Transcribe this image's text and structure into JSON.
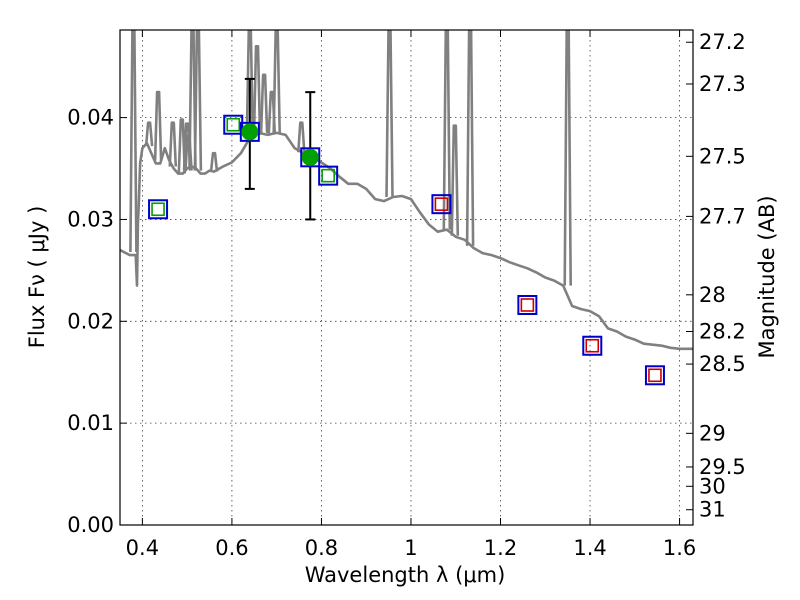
{
  "chart_data": {
    "type": "scatter",
    "title": "",
    "xlabel": "Wavelength  λ (μm)",
    "ylabel": "Flux  Fν  ( μJy )",
    "ylabel_right": "Magnitude (AB)",
    "xlim": [
      0.35,
      1.63
    ],
    "ylim": [
      0.0,
      0.0486
    ],
    "grid": true,
    "x_ticks": [
      {
        "value": 0.4,
        "label": "0.4"
      },
      {
        "value": 0.6,
        "label": "0.6"
      },
      {
        "value": 0.8,
        "label": "0.8"
      },
      {
        "value": 1.0,
        "label": "1"
      },
      {
        "value": 1.2,
        "label": "1.2"
      },
      {
        "value": 1.4,
        "label": "1.4"
      },
      {
        "value": 1.6,
        "label": "1.6"
      }
    ],
    "y_ticks": [
      {
        "value": 0.0,
        "label": "0.00"
      },
      {
        "value": 0.01,
        "label": "0.01"
      },
      {
        "value": 0.02,
        "label": "0.02"
      },
      {
        "value": 0.03,
        "label": "0.03"
      },
      {
        "value": 0.04,
        "label": "0.04"
      }
    ],
    "right_ticks": [
      {
        "flux": 0.0474,
        "label": "27.2"
      },
      {
        "flux": 0.0433,
        "label": "27.3"
      },
      {
        "flux": 0.0362,
        "label": "27.5"
      },
      {
        "flux": 0.0303,
        "label": "27.7"
      },
      {
        "flux": 0.0226,
        "label": "28"
      },
      {
        "flux": 0.019,
        "label": "28.2"
      },
      {
        "flux": 0.0158,
        "label": "28.5"
      },
      {
        "flux": 0.009,
        "label": "29"
      },
      {
        "flux": 0.0057,
        "label": "29.5"
      },
      {
        "flux": 0.0038,
        "label": "30"
      },
      {
        "flux": 0.0015,
        "label": "31"
      }
    ],
    "series": [
      {
        "kind": "line",
        "color": "#808080",
        "x": [
          0.35,
          0.372,
          0.385,
          0.388,
          0.39,
          0.392,
          0.395,
          0.4,
          0.41,
          0.42,
          0.43,
          0.44,
          0.45,
          0.46,
          0.47,
          0.48,
          0.49,
          0.5,
          0.51,
          0.52,
          0.53,
          0.54,
          0.55,
          0.56,
          0.58,
          0.6,
          0.62,
          0.64,
          0.66,
          0.68,
          0.7,
          0.72,
          0.74,
          0.76,
          0.78,
          0.8,
          0.82,
          0.84,
          0.86,
          0.88,
          0.9,
          0.92,
          0.94,
          0.96,
          0.98,
          1.0,
          1.02,
          1.04,
          1.06,
          1.08,
          1.1,
          1.12,
          1.14,
          1.16,
          1.18,
          1.2,
          1.22,
          1.24,
          1.26,
          1.28,
          1.3,
          1.32,
          1.34,
          1.36,
          1.38,
          1.4,
          1.42,
          1.44,
          1.46,
          1.48,
          1.5,
          1.52,
          1.54,
          1.56,
          1.58,
          1.6,
          1.63
        ],
        "values": [
          0.027,
          0.0265,
          0.0265,
          0.0235,
          0.0295,
          0.0315,
          0.0355,
          0.037,
          0.0375,
          0.0365,
          0.0355,
          0.0355,
          0.037,
          0.0358,
          0.035,
          0.0345,
          0.0345,
          0.035,
          0.0352,
          0.035,
          0.0345,
          0.0345,
          0.0348,
          0.0347,
          0.0352,
          0.0356,
          0.0365,
          0.038,
          0.0385,
          0.0383,
          0.0385,
          0.0383,
          0.037,
          0.0365,
          0.0362,
          0.0356,
          0.035,
          0.0342,
          0.0335,
          0.0335,
          0.033,
          0.032,
          0.0318,
          0.0322,
          0.0323,
          0.032,
          0.0307,
          0.0295,
          0.0288,
          0.029,
          0.0283,
          0.028,
          0.0272,
          0.0267,
          0.0265,
          0.0262,
          0.0258,
          0.0255,
          0.0252,
          0.0248,
          0.0243,
          0.024,
          0.0235,
          0.0215,
          0.0212,
          0.021,
          0.0205,
          0.0193,
          0.019,
          0.0185,
          0.0182,
          0.0178,
          0.0177,
          0.0176,
          0.0174,
          0.0173,
          0.0173
        ]
      },
      {
        "kind": "emission_lines",
        "color": "#808080",
        "lines": [
          {
            "x": 0.38,
            "base": 0.0268,
            "peak": 0.0486
          },
          {
            "x": 0.415,
            "base": 0.0372,
            "peak": 0.0395
          },
          {
            "x": 0.435,
            "base": 0.0358,
            "peak": 0.0425
          },
          {
            "x": 0.468,
            "base": 0.0352,
            "peak": 0.0395
          },
          {
            "x": 0.488,
            "base": 0.0345,
            "peak": 0.0398
          },
          {
            "x": 0.503,
            "base": 0.0348,
            "peak": 0.0382
          },
          {
            "x": 0.5,
            "base": 0.0348,
            "peak": 0.0394
          },
          {
            "x": 0.512,
            "base": 0.035,
            "peak": 0.0486
          },
          {
            "x": 0.524,
            "base": 0.0348,
            "peak": 0.0486
          },
          {
            "x": 0.56,
            "base": 0.0347,
            "peak": 0.0365
          },
          {
            "x": 0.64,
            "base": 0.038,
            "peak": 0.0486
          },
          {
            "x": 0.656,
            "base": 0.0383,
            "peak": 0.047
          },
          {
            "x": 0.672,
            "base": 0.0385,
            "peak": 0.0442
          },
          {
            "x": 0.689,
            "base": 0.0384,
            "peak": 0.0425
          },
          {
            "x": 0.7,
            "base": 0.0385,
            "peak": 0.0486
          },
          {
            "x": 0.755,
            "base": 0.0366,
            "peak": 0.0395
          },
          {
            "x": 0.952,
            "base": 0.0322,
            "peak": 0.0486
          },
          {
            "x": 1.08,
            "base": 0.029,
            "peak": 0.0486
          },
          {
            "x": 1.098,
            "base": 0.0284,
            "peak": 0.0392
          },
          {
            "x": 1.132,
            "base": 0.0274,
            "peak": 0.0486
          },
          {
            "x": 1.35,
            "base": 0.0235,
            "peak": 0.0486
          }
        ]
      },
      {
        "kind": "scatter",
        "marker": "green-square-blue-box",
        "x": [
          0.435,
          0.603,
          0.815
        ],
        "values": [
          0.031,
          0.0393,
          0.0343
        ]
      },
      {
        "kind": "scatter",
        "marker": "green-circle-blue-box",
        "x": [
          0.64,
          0.775
        ],
        "values": [
          0.0386,
          0.0361
        ],
        "errors": [
          [
            0.033,
            0.0438
          ],
          [
            0.03,
            0.0425
          ]
        ]
      },
      {
        "kind": "scatter",
        "marker": "red-square-blue-box",
        "x": [
          1.068,
          1.26,
          1.405,
          1.545
        ],
        "values": [
          0.0315,
          0.0216,
          0.0176,
          0.0147
        ]
      }
    ]
  },
  "colors": {
    "spectrum": "#808080",
    "box": "#0000cc",
    "green": "#00a000",
    "red": "#cc0000",
    "errorbar": "#000000"
  }
}
